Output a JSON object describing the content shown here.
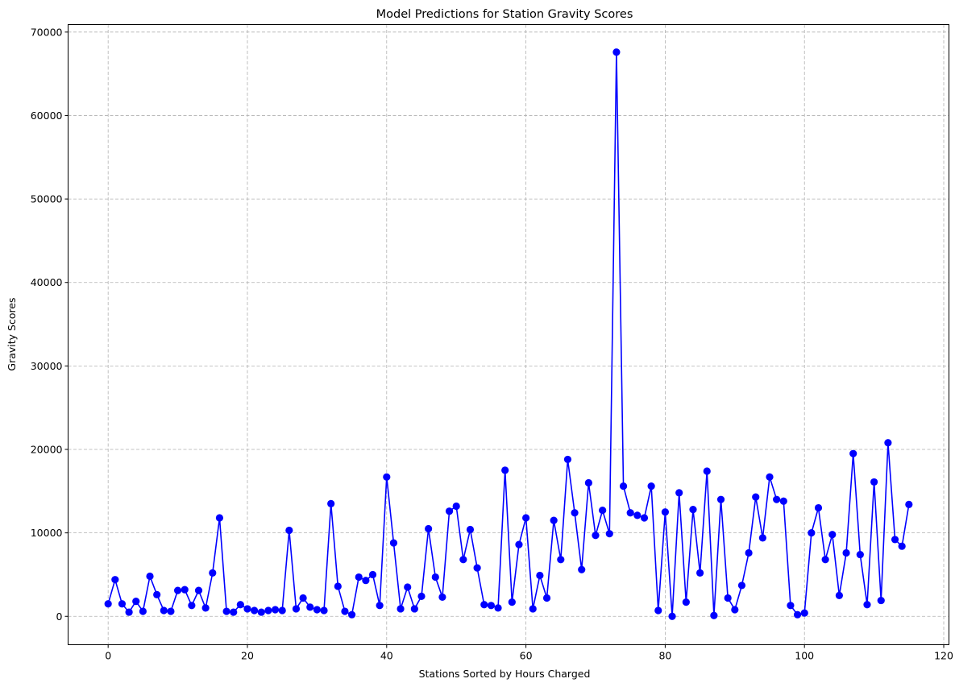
{
  "chart_data": {
    "type": "line",
    "title": "Model Predictions for Station Gravity Scores",
    "xlabel": "Stations Sorted by Hours Charged",
    "ylabel": "Gravity Scores",
    "xlim": [
      -5.75,
      120.75
    ],
    "ylim": [
      -3400,
      70900
    ],
    "xticks": [
      0,
      20,
      40,
      60,
      80,
      100,
      120
    ],
    "yticks": [
      0,
      10000,
      20000,
      30000,
      40000,
      50000,
      60000,
      70000
    ],
    "grid": true,
    "legend": "none",
    "marker": "circle",
    "color": "#0000ff",
    "x": [
      0,
      1,
      2,
      3,
      4,
      5,
      6,
      7,
      8,
      9,
      10,
      11,
      12,
      13,
      14,
      15,
      16,
      17,
      18,
      19,
      20,
      21,
      22,
      23,
      24,
      25,
      26,
      27,
      28,
      29,
      30,
      31,
      32,
      33,
      34,
      35,
      36,
      37,
      38,
      39,
      40,
      41,
      42,
      43,
      44,
      45,
      46,
      47,
      48,
      49,
      50,
      51,
      52,
      53,
      54,
      55,
      56,
      57,
      58,
      59,
      60,
      61,
      62,
      63,
      64,
      65,
      66,
      67,
      68,
      69,
      70,
      71,
      72,
      73,
      74,
      75,
      76,
      77,
      78,
      79,
      80,
      81,
      82,
      83,
      84,
      85,
      86,
      87,
      88,
      89,
      90,
      91,
      92,
      93,
      94,
      95,
      96,
      97,
      98,
      99,
      100,
      101,
      102,
      103,
      104,
      105,
      106,
      107,
      108,
      109,
      110,
      111,
      112,
      113,
      114,
      115
    ],
    "y": [
      1500,
      4400,
      1500,
      500,
      1800,
      600,
      4800,
      2600,
      700,
      600,
      3100,
      3200,
      1300,
      3100,
      1000,
      5200,
      11800,
      600,
      500,
      1400,
      900,
      700,
      500,
      700,
      800,
      700,
      10300,
      900,
      2200,
      1100,
      800,
      700,
      13500,
      3600,
      600,
      200,
      4700,
      4300,
      5000,
      1300,
      16700,
      8800,
      900,
      3500,
      900,
      2400,
      10500,
      4700,
      2300,
      12600,
      13200,
      6800,
      10400,
      5800,
      1400,
      1300,
      1000,
      17500,
      1700,
      8600,
      11800,
      900,
      4900,
      2200,
      11500,
      6800,
      18800,
      12400,
      5600,
      16000,
      9700,
      12700,
      9900,
      67600,
      15600,
      12400,
      12100,
      11800,
      15600,
      700,
      12500,
      0,
      14800,
      1700,
      12800,
      5200,
      17400,
      100,
      14000,
      2200,
      800,
      3700,
      7600,
      14300,
      9400,
      16700,
      14000,
      13800,
      1300,
      200,
      400,
      10000,
      13000,
      6800,
      9800,
      2500,
      7600,
      19500,
      7400,
      1400,
      16100,
      1900,
      20800,
      9200,
      8400,
      13400
    ]
  }
}
